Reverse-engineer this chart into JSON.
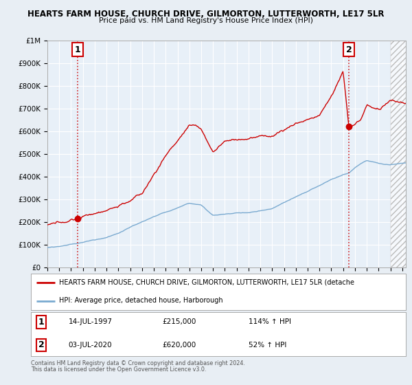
{
  "title1": "HEARTS FARM HOUSE, CHURCH DRIVE, GILMORTON, LUTTERWORTH, LE17 5LR",
  "title2": "Price paid vs. HM Land Registry's House Price Index (HPI)",
  "hpi_label": "HPI: Average price, detached house, Harborough",
  "price_label": "HEARTS FARM HOUSE, CHURCH DRIVE, GILMORTON, LUTTERWORTH, LE17 5LR (detache",
  "sale1_date": "14-JUL-1997",
  "sale1_price": 215000,
  "sale1_hpi_pct": "114% ↑ HPI",
  "sale2_date": "03-JUL-2020",
  "sale2_price": 620000,
  "sale2_hpi_pct": "52% ↑ HPI",
  "footer1": "Contains HM Land Registry data © Crown copyright and database right 2024.",
  "footer2": "This data is licensed under the Open Government Licence v3.0.",
  "ylim_max": 1000000,
  "ylim_min": 0,
  "background_color": "#e8eef4",
  "plot_bg_color": "#e8f0f8",
  "hpi_color": "#7aaad0",
  "price_color": "#cc0000",
  "sale1_year": 1997.54,
  "sale2_year": 2020.5,
  "xmin": 1995,
  "xmax": 2025.3
}
